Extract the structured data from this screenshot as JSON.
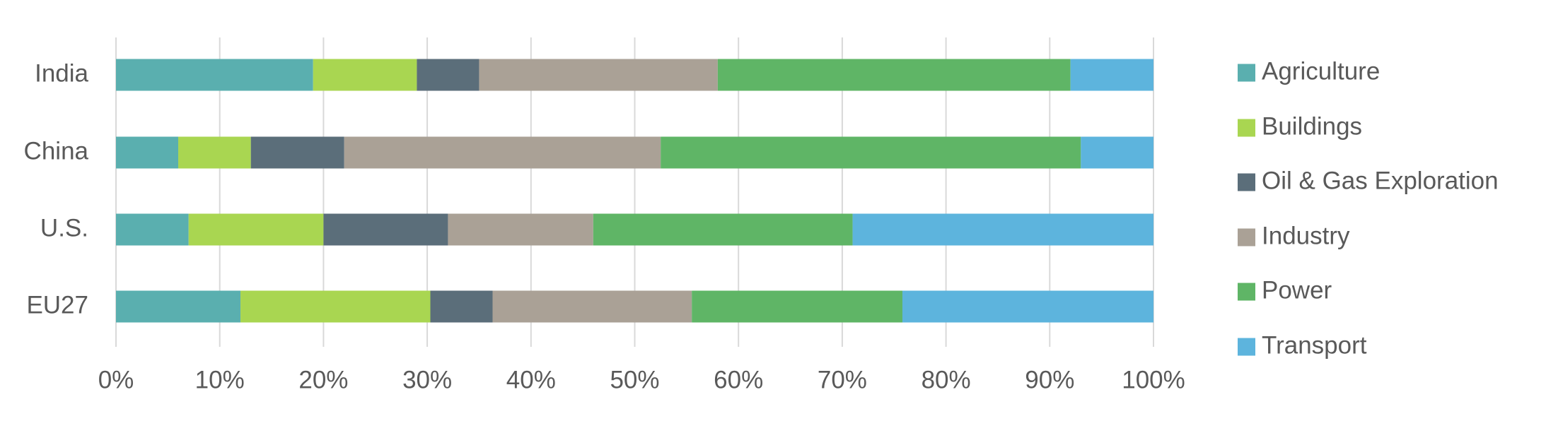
{
  "chart_data": {
    "type": "stacked_barh",
    "categories": [
      "India",
      "China",
      "U.S.",
      "EU27"
    ],
    "series": [
      {
        "name": "Agriculture",
        "color": "#5aafaf",
        "values": [
          19,
          6,
          7,
          12
        ]
      },
      {
        "name": "Buildings",
        "color": "#a9d651",
        "values": [
          10,
          7,
          13,
          18.3
        ]
      },
      {
        "name": "Oil & Gas Exploration",
        "color": "#5b6e7a",
        "values": [
          6,
          9,
          12,
          6
        ]
      },
      {
        "name": "Industry",
        "color": "#aaa196",
        "values": [
          23,
          30.5,
          14,
          19.2
        ]
      },
      {
        "name": "Power",
        "color": "#5fb566",
        "values": [
          34,
          40.5,
          25,
          20.3
        ]
      },
      {
        "name": "Transport",
        "color": "#5db4dd",
        "values": [
          8,
          7,
          29,
          24.2
        ]
      }
    ],
    "xlim": [
      0,
      100
    ],
    "xticks": [
      {
        "value": 0,
        "label": "0%"
      },
      {
        "value": 10,
        "label": "10%"
      },
      {
        "value": 20,
        "label": "20%"
      },
      {
        "value": 30,
        "label": "30%"
      },
      {
        "value": 40,
        "label": "40%"
      },
      {
        "value": 50,
        "label": "50%"
      },
      {
        "value": 60,
        "label": "60%"
      },
      {
        "value": 70,
        "label": "70%"
      },
      {
        "value": 80,
        "label": "80%"
      },
      {
        "value": 90,
        "label": "90%"
      },
      {
        "value": 100,
        "label": "100%"
      }
    ],
    "grid": true,
    "legend": "right"
  }
}
